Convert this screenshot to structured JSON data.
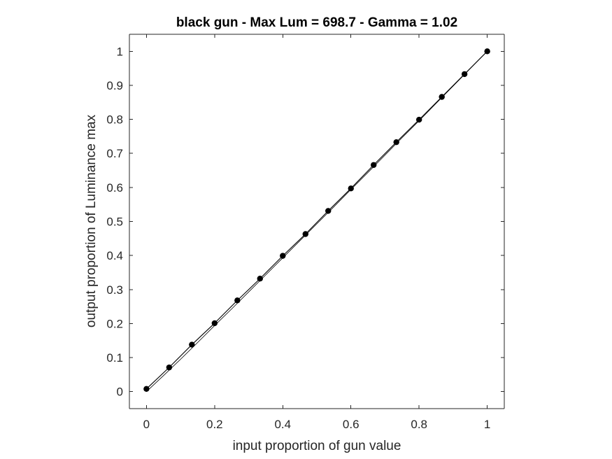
{
  "chart_data": {
    "type": "line",
    "title": "black gun - Max Lum = 698.7 - Gamma = 1.02",
    "xlabel": "input proportion of gun value",
    "ylabel": "output proportion of Luminance max",
    "xlim": [
      -0.05,
      1.05
    ],
    "ylim": [
      -0.05,
      1.05
    ],
    "xticks": [
      0,
      0.2,
      0.4,
      0.6,
      0.8,
      1
    ],
    "xtick_labels": [
      "0",
      "0.2",
      "0.4",
      "0.6",
      "0.8",
      "1"
    ],
    "yticks": [
      0,
      0.1,
      0.2,
      0.3,
      0.4,
      0.5,
      0.6,
      0.7,
      0.8,
      0.9,
      1
    ],
    "ytick_labels": [
      "0",
      "0.1",
      "0.2",
      "0.3",
      "0.4",
      "0.5",
      "0.6",
      "0.7",
      "0.8",
      "0.9",
      "1"
    ],
    "grid": false,
    "box": true,
    "series": [
      {
        "kind": "measured",
        "marker": "filled-circle",
        "color": "#000000",
        "x": [
          0,
          0.0667,
          0.1333,
          0.2,
          0.2667,
          0.3333,
          0.4,
          0.4667,
          0.5333,
          0.6,
          0.6667,
          0.7333,
          0.8,
          0.8667,
          0.9333,
          1
        ],
        "y": [
          0.008,
          0.071,
          0.138,
          0.201,
          0.268,
          0.332,
          0.399,
          0.463,
          0.531,
          0.597,
          0.666,
          0.733,
          0.799,
          0.866,
          0.933,
          1
        ]
      },
      {
        "kind": "fit",
        "marker": "none",
        "color": "#000000",
        "x": [
          0,
          0.05,
          0.1,
          0.15,
          0.2,
          0.25,
          0.3,
          0.35,
          0.4,
          0.45,
          0.5,
          0.55,
          0.6,
          0.65,
          0.7,
          0.75,
          0.8,
          0.85,
          0.9,
          0.95,
          1
        ],
        "y": [
          0,
          0.047,
          0.095,
          0.144,
          0.194,
          0.243,
          0.293,
          0.343,
          0.393,
          0.443,
          0.493,
          0.543,
          0.594,
          0.644,
          0.695,
          0.746,
          0.796,
          0.847,
          0.898,
          0.949,
          1
        ]
      }
    ]
  }
}
